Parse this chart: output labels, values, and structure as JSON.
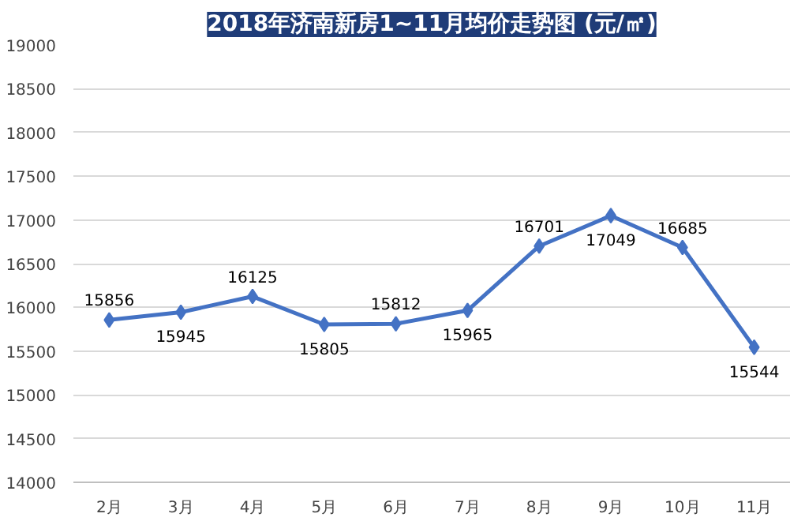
{
  "chart_data": {
    "type": "line",
    "title": "2018年济南新房1~11月均价走势图 (元/㎡)",
    "categories": [
      "2月",
      "3月",
      "4月",
      "5月",
      "6月",
      "7月",
      "8月",
      "9月",
      "10月",
      "11月"
    ],
    "series": [
      {
        "color": "#4472c4",
        "values": [
          15856,
          15945,
          16125,
          15805,
          15812,
          15965,
          16701,
          17049,
          16685,
          15544
        ]
      }
    ],
    "ylim": [
      14000,
      19000
    ],
    "yticks": [
      14000,
      14500,
      15000,
      15500,
      16000,
      16500,
      17000,
      17500,
      18000,
      18500,
      19000
    ],
    "grid": "y",
    "marker": "diamond",
    "line_style": "solid",
    "data_labels": true
  }
}
